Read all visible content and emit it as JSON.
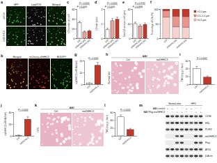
{
  "chart_data": [
    {
      "type": "bar",
      "ylabel": "LD number per cell",
      "categories": [
        "Ctrl",
        "shDHHC3#1",
        "shDHHC3#2"
      ],
      "values": [
        32,
        13,
        15
      ],
      "errors": [
        3,
        2,
        2
      ],
      "colors": [
        "#ffffff",
        "#e6a5a0",
        "#c0392b"
      ],
      "ylim": [
        0,
        60
      ],
      "yticks": [
        0,
        20,
        40,
        60
      ],
      "annotations": [
        "P < 0.0001",
        "P < 0.0001"
      ]
    },
    {
      "type": "bar",
      "ylabel": "LD size (μm²)",
      "categories": [
        "Ctrl",
        "shDHHC3#1",
        "shDHHC3#2"
      ],
      "values": [
        0.6,
        1.2,
        1.3
      ],
      "errors": [
        0.1,
        0.15,
        0.15
      ],
      "colors": [
        "#ffffff",
        "#e6a5a0",
        "#c0392b"
      ],
      "ylim": [
        0,
        2
      ],
      "yticks": [
        0,
        1,
        2
      ],
      "annotations": [
        "P < 0.0001",
        "P < 0.0001"
      ]
    },
    {
      "type": "bar",
      "ylabel": "Total LD area per cell (μm²)",
      "categories": [
        "Ctrl",
        "shDHHC3#1",
        "shDHHC3#2"
      ],
      "values": [
        20,
        17,
        19
      ],
      "errors": [
        2,
        2,
        2
      ],
      "colors": [
        "#ffffff",
        "#e6a5a0",
        "#c0392b"
      ],
      "ylim": [
        0,
        40
      ],
      "yticks": [
        0,
        20,
        40
      ],
      "annotations": [
        "P = 0.0806",
        "P = 0.3742"
      ]
    },
    {
      "type": "bar",
      "stacked": true,
      "ylabel": "Percentage of LDs (%)",
      "categories": [
        "Ctrl",
        "shDHHC3#1",
        "shDHHC3#2"
      ],
      "series": [
        {
          "name": "<0.5 μm",
          "color": "#f6d2ce",
          "values": [
            72,
            40,
            38
          ]
        },
        {
          "name": "0.5–1.0 μm",
          "color": "#e8958c",
          "values": [
            22,
            35,
            36
          ]
        },
        {
          "name": ">1.0 μm",
          "color": "#c0392b",
          "values": [
            6,
            25,
            26
          ]
        }
      ],
      "ylim": [
        0,
        100
      ],
      "yticks": [
        0,
        50,
        100
      ],
      "legend": "right"
    },
    {
      "type": "bar",
      "ylabel": "mzDHHC3 mRNA (fold)",
      "categories": [
        "Ctrl",
        "mzDHHC3"
      ],
      "values": [
        1,
        16
      ],
      "errors": [
        0.3,
        2.5
      ],
      "colors": [
        "#ffffff",
        "#c0392b"
      ],
      "ylim": [
        0,
        20
      ],
      "yticks": [
        0,
        10,
        20
      ],
      "annotations": [
        "P < 0.0001"
      ]
    },
    {
      "type": "bar",
      "ylabel": "TAG (mg g⁻¹ liver)",
      "categories": [
        "Ctrl",
        "mzDHHC3"
      ],
      "values": [
        20,
        9
      ],
      "errors": [
        2.5,
        1.5
      ],
      "colors": [
        "#ffffff",
        "#c0392b"
      ],
      "ylim": [
        0,
        30
      ],
      "yticks": [
        0,
        10,
        20,
        30
      ],
      "annotations": [
        "P < 0.0001"
      ]
    },
    {
      "type": "bar",
      "ylabel": "mzDHHC3 mRNA (fold)",
      "categories": [
        "Ctrl",
        "mzDHHC3"
      ],
      "values": [
        1,
        28
      ],
      "errors": [
        0.5,
        4
      ],
      "colors": [
        "#ffffff",
        "#c0392b"
      ],
      "ylim": [
        0,
        40
      ],
      "yticks": [
        0,
        20,
        40
      ],
      "annotations": [
        "P < 0.0001"
      ]
    },
    {
      "type": "bar",
      "ylabel": "TAG (mg g⁻¹ liver)",
      "categories": [
        "Ctrl",
        "mzDHHC3"
      ],
      "values": [
        48,
        16
      ],
      "errors": [
        5,
        3
      ],
      "colors": [
        "#ffffff",
        "#c0392b"
      ],
      "ylim": [
        0,
        60
      ],
      "yticks": [
        0,
        20,
        40,
        60
      ],
      "annotations": [
        "P < 0.0001"
      ]
    }
  ],
  "figure": {
    "panel_letters": [
      "a",
      "b",
      "c",
      "d",
      "e",
      "f",
      "g",
      "h",
      "i",
      "j",
      "k",
      "l",
      "m"
    ],
    "panel_a": {
      "columns": [
        "GFP",
        "LipidTOX",
        "Merged"
      ],
      "rows": [
        "shCtrl",
        "shDHHC3"
      ]
    },
    "panel_b": {
      "columns": [
        "Merged",
        "mCherry-zDHHC3",
        "BODIPY"
      ]
    },
    "panel_h": {
      "title": "AAV",
      "columns": [
        "Ctrl",
        "mzDHHC3"
      ],
      "row": "Normal diet"
    },
    "panel_k": {
      "title": "AAV",
      "columns": [
        "Ctrl",
        "mzDHHC3"
      ],
      "row": "HFD"
    },
    "panel_m": {
      "groups": [
        "Normal diet",
        "HFD"
      ],
      "conditions": [
        {
          "label": "AAV-control",
          "lanes": [
            "+",
            "+",
            "−",
            "−",
            "+",
            "+",
            "−",
            "−"
          ]
        },
        {
          "label": "AAV-Flag-mzDHHC3",
          "lanes": [
            "−",
            "−",
            "+",
            "+",
            "−",
            "−",
            "+",
            "+"
          ]
        }
      ],
      "rows": [
        "CD36",
        "HSL",
        "PLIN3",
        "mzDHHC3",
        "Flag",
        "ATGL",
        "β-Actin"
      ]
    }
  }
}
